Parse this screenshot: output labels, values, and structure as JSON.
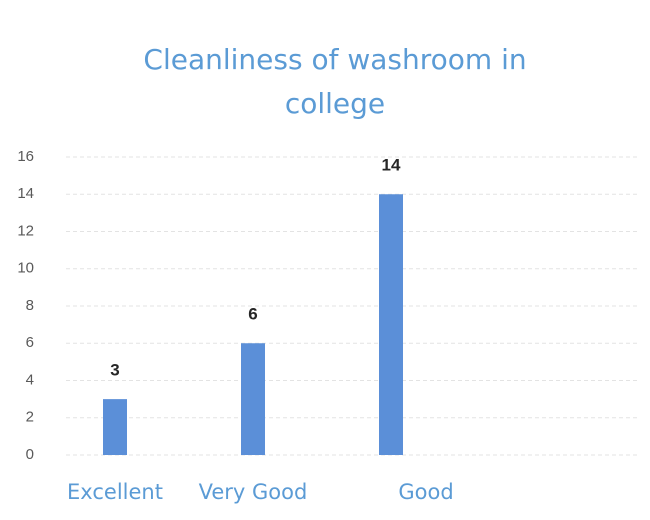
{
  "chart_data": {
    "type": "bar",
    "title": "Cleanliness of washroom in college",
    "categories": [
      "Excellent",
      "Very Good",
      "Good"
    ],
    "values": [
      3,
      6,
      14
    ],
    "color": "#5b8fd8",
    "ylim": [
      0,
      16
    ],
    "yticks": [
      0,
      2,
      4,
      6,
      8,
      10,
      12,
      14,
      16
    ],
    "grid": true
  }
}
